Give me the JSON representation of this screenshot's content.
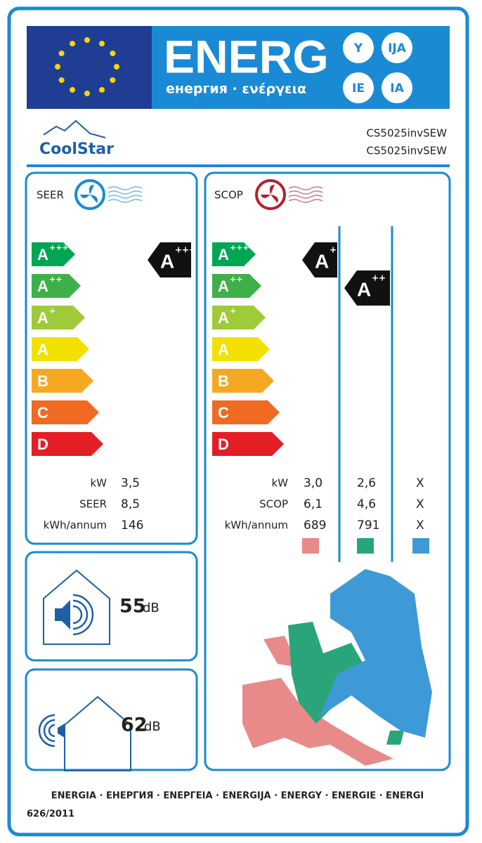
{
  "header": {
    "title": "ENERG",
    "subtitle": "енергия · ενέργεια",
    "suffixes": [
      "Y",
      "IJA",
      "IE",
      "IA"
    ]
  },
  "supplier": "CoolStar",
  "models": [
    "CS5025invSEW",
    "CS5025invSEW"
  ],
  "seer": {
    "title": "SEER",
    "classes": [
      {
        "letter": "A",
        "plus": "+++"
      },
      {
        "letter": "A",
        "plus": "++"
      },
      {
        "letter": "A",
        "plus": "+"
      },
      {
        "letter": "A"
      },
      {
        "letter": "B"
      },
      {
        "letter": "C"
      },
      {
        "letter": "D"
      }
    ],
    "rating": {
      "letter": "A",
      "plus": "+++"
    },
    "labels": [
      "kW",
      "SEER",
      "kWh/annum"
    ],
    "values": [
      "3,5",
      "8,5",
      "146"
    ]
  },
  "scop": {
    "title": "SCOP",
    "classes": [
      {
        "letter": "A",
        "plus": "+++"
      },
      {
        "letter": "A",
        "plus": "++"
      },
      {
        "letter": "A",
        "plus": "+"
      },
      {
        "letter": "A"
      },
      {
        "letter": "B"
      },
      {
        "letter": "C"
      },
      {
        "letter": "D"
      }
    ],
    "ratings": [
      {
        "letter": "A",
        "plus": "+++"
      },
      {
        "letter": "A",
        "plus": "++"
      }
    ],
    "labels": [
      "kW",
      "SCOP",
      "kWh/annum"
    ],
    "columns": [
      [
        "3,0",
        "6,1",
        "689"
      ],
      [
        "2,6",
        "4,6",
        "791"
      ],
      [
        "X",
        "X",
        "X"
      ]
    ]
  },
  "noise": {
    "indoor": "55",
    "outdoor": "62",
    "unit": "dB"
  },
  "footer": {
    "languages": "ENERGIA · ЕНЕРГИЯ · ΕΝΕΡΓΕΙΑ · ENERGIJA · ENERGY · ENERGIE · ENERGI",
    "regulation": "626/2011"
  }
}
